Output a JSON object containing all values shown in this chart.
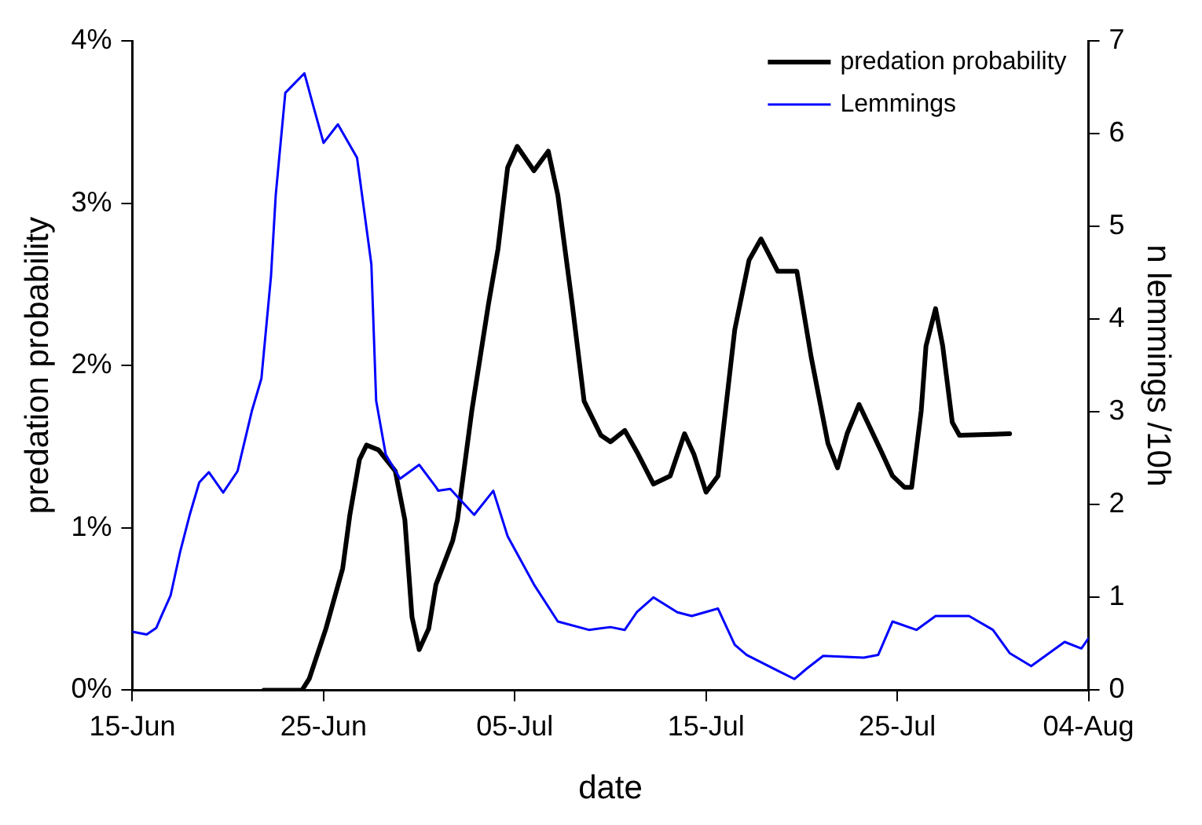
{
  "chart_data": {
    "type": "line",
    "xlabel": "date",
    "ylabel": "predation probability",
    "y2label": "n lemmings /10h",
    "xlim": [
      "--06-15",
      "--08-04"
    ],
    "xticks": [
      {
        "value": "--06-15",
        "label": "15-Jun"
      },
      {
        "value": "--06-25",
        "label": "25-Jun"
      },
      {
        "value": "--07-05",
        "label": "05-Jul"
      },
      {
        "value": "--07-15",
        "label": "15-Jul"
      },
      {
        "value": "--07-25",
        "label": "25-Jul"
      },
      {
        "value": "--08-04",
        "label": "04-Aug"
      }
    ],
    "ylim": [
      0,
      4
    ],
    "yticks": [
      {
        "value": 0,
        "label": "0%"
      },
      {
        "value": 1,
        "label": "1%"
      },
      {
        "value": 2,
        "label": "2%"
      },
      {
        "value": 3,
        "label": "3%"
      },
      {
        "value": 4,
        "label": "4%"
      }
    ],
    "y2lim": [
      0,
      7
    ],
    "y2ticks": [
      0,
      1,
      2,
      3,
      4,
      5,
      6,
      7
    ],
    "grid": false,
    "legend": "top right",
    "marker": "none",
    "line_style": "solid",
    "series": [
      {
        "name": "predation probability",
        "color": "#000000",
        "x": [
          "--06-21T21:00",
          "--06-23T21:00",
          "--06-24T06:00",
          "--06-25T03:00",
          "--06-26",
          "--06-26T09:00",
          "--06-26T21:00",
          "--06-27T06:00",
          "--06-27T21:00",
          "--06-28T18:00",
          "--06-29T06:00",
          "--06-29T15:00",
          "--06-30",
          "--06-30T12:00",
          "--06-30T21:00",
          "--07-01T18:00",
          "--07-02",
          "--07-02T18:00",
          "--07-03T15:00",
          "--07-04T03:00",
          "--07-04T15:00",
          "--07-05T03:00",
          "--07-06",
          "--07-06T18:00",
          "--07-07T06:00",
          "--07-08",
          "--07-08T15:00",
          "--07-09T12:00",
          "--07-10",
          "--07-10T18:00",
          "--07-11T09:00",
          "--07-12T06:00",
          "--07-13T03:00",
          "--07-13T21:00",
          "--07-14T09:00",
          "--07-15",
          "--07-15T15:00",
          "--07-16T12:00",
          "--07-17T06:00",
          "--07-17T21:00",
          "--07-18T18:00",
          "--07-19T18:00",
          "--07-20T12:00",
          "--07-21T09:00",
          "--07-21T21:00",
          "--07-22T09:00",
          "--07-23",
          "--07-24T03:00",
          "--07-24T18:00",
          "--07-25T09:00",
          "--07-25T18:00",
          "--07-26T06:00",
          "--07-26T12:00",
          "--07-27",
          "--07-27T09:00",
          "--07-27T21:00",
          "--07-28T06:00",
          "--07-30T21:00"
        ],
        "values": [
          0,
          0,
          0.07,
          0.38,
          0.75,
          1.08,
          1.42,
          1.51,
          1.48,
          1.35,
          1.05,
          0.45,
          0.25,
          0.38,
          0.65,
          0.92,
          1.05,
          1.72,
          2.38,
          2.72,
          3.22,
          3.35,
          3.2,
          3.32,
          3.05,
          2.38,
          1.78,
          1.57,
          1.53,
          1.6,
          1.47,
          1.27,
          1.32,
          1.58,
          1.45,
          1.22,
          1.32,
          2.22,
          2.65,
          2.78,
          2.58,
          2.58,
          2.05,
          1.52,
          1.37,
          1.58,
          1.76,
          1.48,
          1.32,
          1.25,
          1.25,
          1.72,
          2.12,
          2.35,
          2.12,
          1.65,
          1.57,
          1.58
        ]
      },
      {
        "name": "Lemmings",
        "color": "#0000ff",
        "axis": "y2",
        "x": [
          "--06-15",
          "--06-15T18:00",
          "--06-16T06:00",
          "--06-16T12:00",
          "--06-17",
          "--06-17T12:00",
          "--06-18",
          "--06-18T12:00",
          "--06-19",
          "--06-19T18:00",
          "--06-20T12:00",
          "--06-21T06:00",
          "--06-21T18:00",
          "--06-22T06:00",
          "--06-22T12:00",
          "--06-23",
          "--06-24",
          "--06-24T12:00",
          "--06-25",
          "--06-25T18:00",
          "--06-26T18:00",
          "--06-27T12:00",
          "--06-27T18:00",
          "--06-28T06:00",
          "--06-29",
          "--06-30",
          "--06-30T21:00",
          "--07-01",
          "--07-01T15:00",
          "--07-02T21:00",
          "--07-03T21:00",
          "--07-04T15:00",
          "--07-06",
          "--07-07T06:00",
          "--07-08T21:00",
          "--07-10",
          "--07-10T18:00",
          "--07-11T09:00",
          "--07-12T06:00",
          "--07-13T12:00",
          "--07-14T06:00",
          "--07-15T15:00",
          "--07-16T12:00",
          "--07-17T03:00",
          "--07-18T18:00",
          "--07-19T15:00",
          "--07-20T06:00",
          "--07-21T03:00",
          "--07-23T06:00",
          "--07-24",
          "--07-24T18:00",
          "--07-26",
          "--07-27",
          "--07-28T18:00",
          "--07-30",
          "--07-30T21:00",
          "--08-01",
          "--08-02T18:00",
          "--08-03T15:00",
          "--08-04"
        ],
        "values": [
          0.63,
          0.6,
          0.67,
          0.79,
          1.02,
          1.49,
          1.89,
          2.24,
          2.35,
          2.13,
          2.36,
          3.01,
          3.36,
          4.46,
          5.34,
          6.44,
          6.65,
          6.27,
          5.9,
          6.1,
          5.74,
          4.59,
          3.12,
          2.54,
          2.28,
          2.43,
          2.19,
          2.15,
          2.17,
          1.89,
          2.15,
          1.66,
          1.14,
          0.74,
          0.65,
          0.68,
          0.65,
          0.84,
          1.0,
          0.84,
          0.8,
          0.88,
          0.49,
          0.38,
          0.21,
          0.12,
          0.23,
          0.37,
          0.35,
          0.38,
          0.74,
          0.65,
          0.8,
          0.8,
          0.65,
          0.4,
          0.26,
          0.52,
          0.45,
          0.56
        ]
      }
    ]
  }
}
